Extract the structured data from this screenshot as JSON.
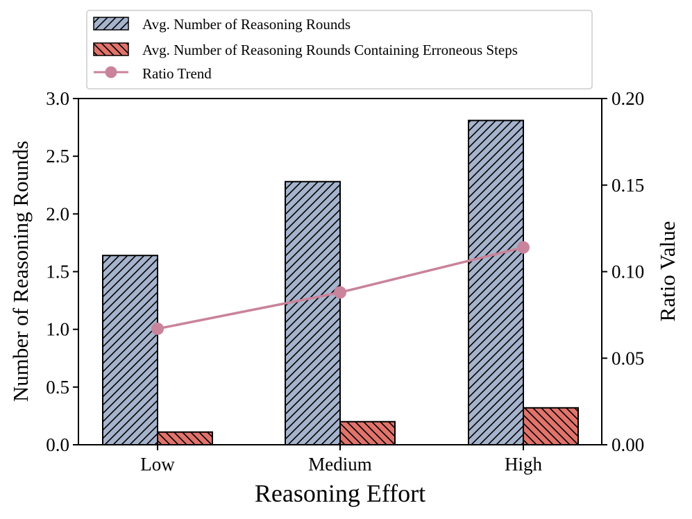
{
  "chart_data": {
    "type": "bar",
    "title": "",
    "xlabel": "Reasoning Effort",
    "ylabel": "Number of Reasoning Rounds",
    "y2label": "Ratio Value",
    "categories": [
      "Low",
      "Medium",
      "High"
    ],
    "ylim": [
      0,
      3.0
    ],
    "y2lim": [
      0,
      0.2
    ],
    "yticks": [
      "0.0",
      "0.5",
      "1.0",
      "1.5",
      "2.0",
      "2.5",
      "3.0"
    ],
    "y2ticks": [
      "0.00",
      "0.05",
      "0.10",
      "0.15",
      "0.20"
    ],
    "grid": false,
    "legend_position": "top-center (above plot)",
    "series": [
      {
        "name": "Avg. Number of Reasoning Rounds",
        "type": "bar",
        "axis": "left",
        "values": [
          1.64,
          2.28,
          2.81
        ],
        "color": "#a5b3cc",
        "hatch": "forward-diagonal"
      },
      {
        "name": "Avg. Number of Reasoning Rounds Containing Erroneous Steps",
        "type": "bar",
        "axis": "left",
        "values": [
          0.11,
          0.2,
          0.32
        ],
        "color": "#e0736b",
        "hatch": "back-diagonal"
      },
      {
        "name": "Ratio Trend",
        "type": "line",
        "axis": "right",
        "values": [
          0.067,
          0.088,
          0.114
        ],
        "color": "#c9839a",
        "marker": "circle"
      }
    ]
  }
}
